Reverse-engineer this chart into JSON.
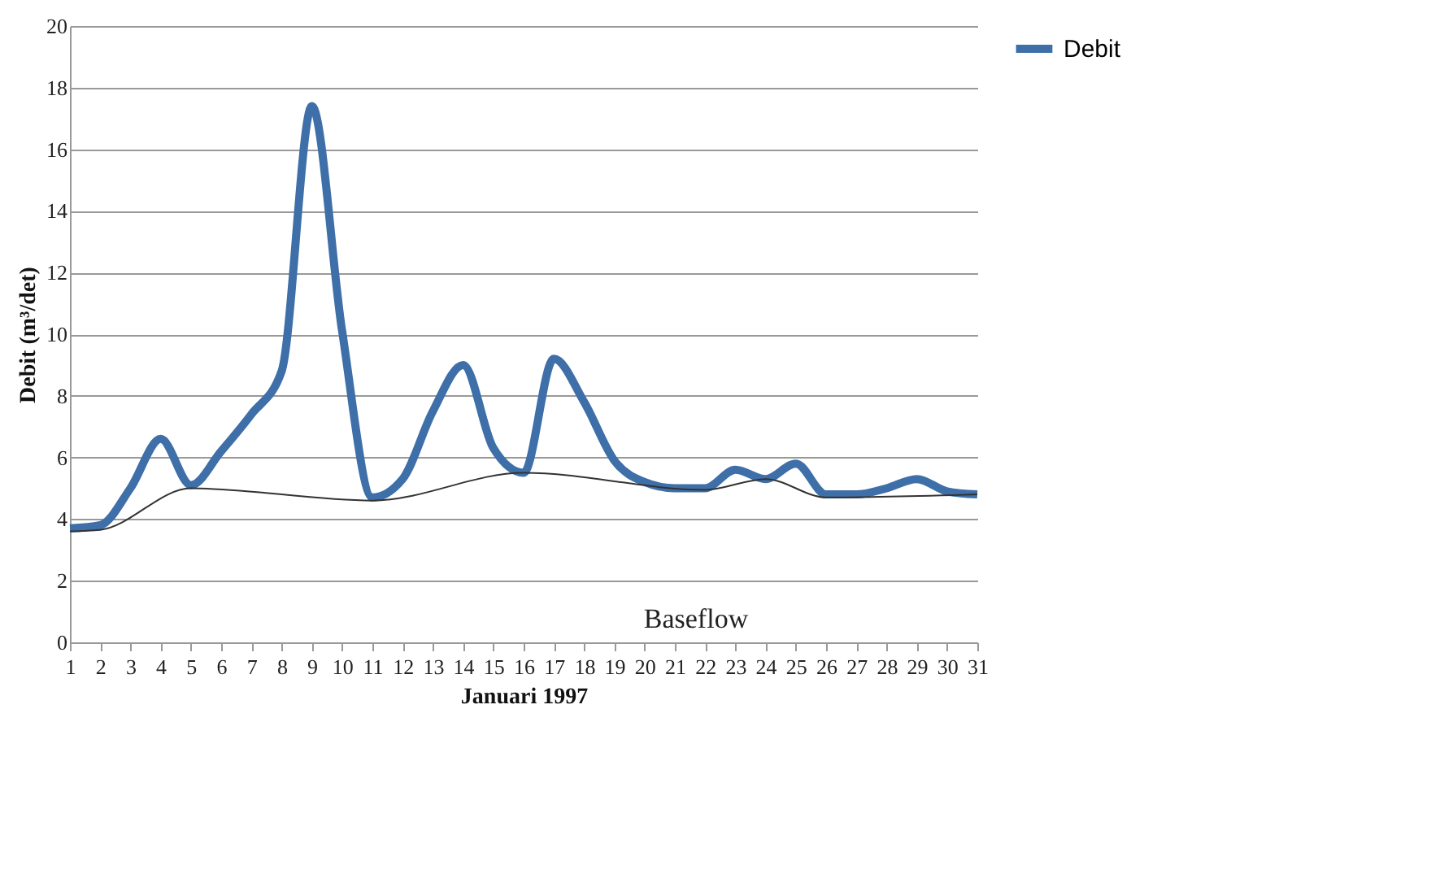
{
  "chart_data": {
    "type": "line",
    "xlabel": "Januari 1997",
    "ylabel": "Debit (m³/det)",
    "x": [
      1,
      2,
      3,
      4,
      5,
      6,
      7,
      8,
      9,
      10,
      11,
      12,
      13,
      14,
      15,
      16,
      17,
      18,
      19,
      20,
      21,
      22,
      23,
      24,
      25,
      26,
      27,
      28,
      29,
      30,
      31
    ],
    "series": [
      {
        "name": "Debit",
        "color": "#3e6fa8",
        "values": [
          3.7,
          3.8,
          5.0,
          6.6,
          5.1,
          6.2,
          7.4,
          8.8,
          17.4,
          10.1,
          4.7,
          5.3,
          7.5,
          9.0,
          6.3,
          5.5,
          9.2,
          7.8,
          5.9,
          5.2,
          5.0,
          5.0,
          5.6,
          5.3,
          5.8,
          4.8,
          4.8,
          5.0,
          5.3,
          4.9,
          4.8
        ]
      },
      {
        "type": "line",
        "color": "#333333",
        "x": [
          1,
          2,
          5,
          11,
          16,
          22,
          24,
          26,
          31
        ],
        "values": [
          3.6,
          3.65,
          5.0,
          4.6,
          5.5,
          4.95,
          5.3,
          4.7,
          4.8
        ]
      }
    ],
    "annotations": [
      "Baseflow"
    ],
    "xlim": [
      1,
      31
    ],
    "xticks": [
      1,
      2,
      3,
      4,
      5,
      6,
      7,
      8,
      9,
      10,
      11,
      12,
      13,
      14,
      15,
      16,
      17,
      18,
      19,
      20,
      21,
      22,
      23,
      24,
      25,
      26,
      27,
      28,
      29,
      30,
      31
    ],
    "ylim": [
      0,
      20
    ],
    "yticks": [
      0,
      2,
      4,
      6,
      8,
      10,
      12,
      14,
      16,
      18,
      20
    ],
    "grid": "y",
    "legend": "right",
    "marker": "none",
    "line_style": "solid"
  }
}
